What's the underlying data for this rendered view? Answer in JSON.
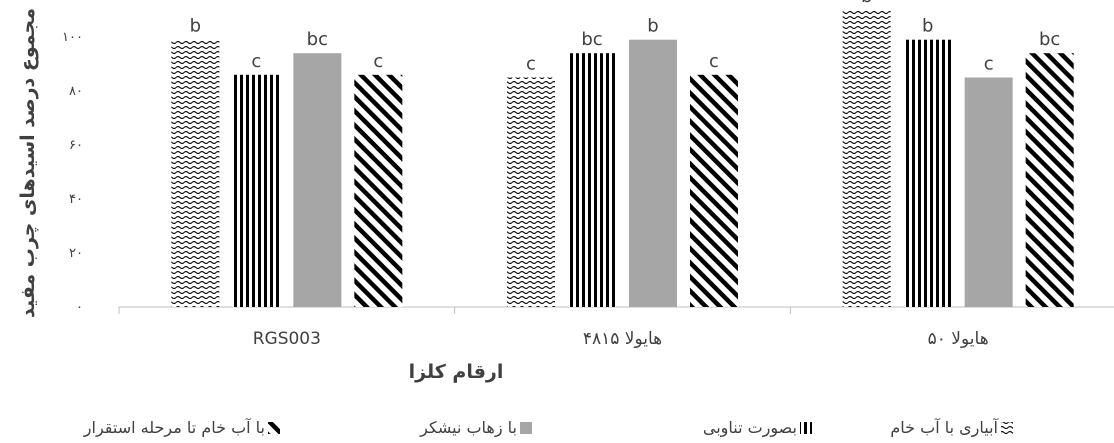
{
  "chart_data": {
    "type": "bar",
    "title": "",
    "xlabel": "ارقام کلزا",
    "ylabel": "مجموع درصد اسیدهای چرب مفید",
    "ylim": [
      0,
      110
    ],
    "yticks": [
      0,
      20,
      40,
      60,
      80,
      100
    ],
    "ytick_labels": [
      "۰",
      "۲۰",
      "۴۰",
      "۶۰",
      "۸۰",
      "۱۰۰"
    ],
    "grid": false,
    "legend_position": "bottom",
    "categories": [
      "RGS003",
      "هایولا ۴۸۱۵",
      "هایولا ۵۰"
    ],
    "series": [
      {
        "name": "آبیاری با آب خام",
        "pattern": "wave",
        "values": [
          99,
          85,
          110
        ],
        "labels": [
          "b",
          "c",
          "b"
        ]
      },
      {
        "name": "بصورت تناوبی",
        "pattern": "vertical",
        "values": [
          86,
          94,
          99
        ],
        "labels": [
          "c",
          "bc",
          "b"
        ]
      },
      {
        "name": "با زهاب نیشکر",
        "pattern": "solid",
        "color": "#a6a6a6",
        "values": [
          94,
          99,
          85
        ],
        "labels": [
          "bc",
          "b",
          "c"
        ]
      },
      {
        "name": "با آب خام تا مرحله استقرار",
        "pattern": "diagonal",
        "values": [
          86,
          86,
          94
        ],
        "labels": [
          "c",
          "c",
          "bc"
        ]
      }
    ]
  }
}
